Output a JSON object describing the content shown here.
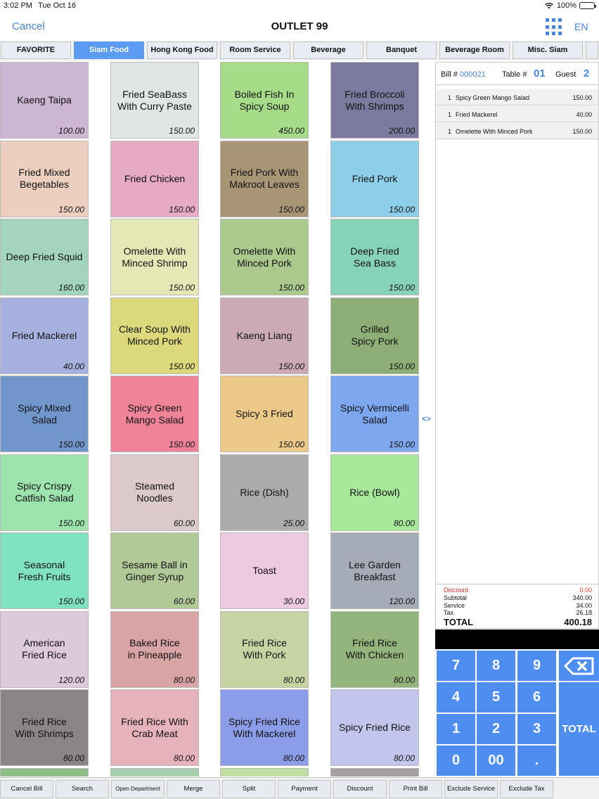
{
  "status_bar": {
    "time": "3:02 PM",
    "date": "Tue Oct 16",
    "battery": "100%"
  },
  "nav": {
    "cancel_label": "Cancel",
    "title": "OUTLET 99",
    "lang": "EN"
  },
  "tabs": [
    {
      "label": "FAVORITE"
    },
    {
      "label": "Siam Food",
      "active": true
    },
    {
      "label": "Hong Kong Food"
    },
    {
      "label": "Room Service"
    },
    {
      "label": "Beverage"
    },
    {
      "label": "Banquet"
    },
    {
      "label": "Beverage Room"
    },
    {
      "label": "Misc. Siam"
    },
    {
      "label": ""
    }
  ],
  "menu_items": [
    {
      "name": "Kaeng Taipa",
      "price": "100.00",
      "color": "#cdb5d4"
    },
    {
      "name": "Fried SeaBass\nWith Curry Paste",
      "price": "150.00",
      "color": "#e0e6e6"
    },
    {
      "name": "Boiled Fish In\nSpicy Soup",
      "price": "450.00",
      "color": "#a6dc88"
    },
    {
      "name": "Fried Broccoli\nWith Shrimps",
      "price": "200.00",
      "color": "#7d7aa0"
    },
    {
      "name": "Fried Mixed\nBegetables",
      "price": "150.00",
      "color": "#eccfbf"
    },
    {
      "name": "Fried Chicken",
      "price": "150.00",
      "color": "#e7aac4"
    },
    {
      "name": "Fried Pork With\nMakroot Leaves",
      "price": "150.00",
      "color": "#a89576"
    },
    {
      "name": "Fried Pork",
      "price": "150.00",
      "color": "#8dcfe8"
    },
    {
      "name": "Deep Fried Squid",
      "price": "160.00",
      "color": "#a3d4bf"
    },
    {
      "name": "Omelette With\nMinced Shrimp",
      "price": "150.00",
      "color": "#e3e8b4"
    },
    {
      "name": "Omelette With\nMinced Pork",
      "price": "150.00",
      "color": "#abc98d"
    },
    {
      "name": "Deep Fried\nSea Bass",
      "price": "150.00",
      "color": "#87d3b7"
    },
    {
      "name": "Fried Mackerel",
      "price": "40.00",
      "color": "#a7b1e0"
    },
    {
      "name": "Clear Soup With\nMinced Pork",
      "price": "150.00",
      "color": "#dcd97c"
    },
    {
      "name": "Kaeng Liang",
      "price": "150.00",
      "color": "#cbaab6"
    },
    {
      "name": "Grilled\nSpicy Pork",
      "price": "150.00",
      "color": "#8daf75"
    },
    {
      "name": "Spicy Mixed\nSalad",
      "price": "150.00",
      "color": "#7096cc"
    },
    {
      "name": "Spicy Green\nMango Salad",
      "price": "150.00",
      "color": "#ef8499"
    },
    {
      "name": "Spicy 3 Fried",
      "price": "150.00",
      "color": "#ecc989"
    },
    {
      "name": "Spicy Vermicelli\nSalad",
      "price": "150.00",
      "color": "#7da7ef"
    },
    {
      "name": "Spicy Crispy\nCatfish Salad",
      "price": "150.00",
      "color": "#9ce3ae"
    },
    {
      "name": "Steamed\nNoodles",
      "price": "60.00",
      "color": "#dcc9cc"
    },
    {
      "name": "Rice (Dish)",
      "price": "25.00",
      "color": "#ababab"
    },
    {
      "name": "Rice (Bowl)",
      "price": "80.00",
      "color": "#a7e89b"
    },
    {
      "name": "Seasonal\nFresh Fruits",
      "price": "150.00",
      "color": "#80e3c0"
    },
    {
      "name": "Sesame Ball in\nGinger Syrup",
      "price": "60.00",
      "color": "#b0c997"
    },
    {
      "name": "Toast",
      "price": "30.00",
      "color": "#eec9e2"
    },
    {
      "name": "Lee Garden\nBreakfast",
      "price": "120.00",
      "color": "#a6abb8"
    },
    {
      "name": "American\nFried Rice",
      "price": "120.00",
      "color": "#dec8dc"
    },
    {
      "name": "Baked Rice\nin Pineapple",
      "price": "80.00",
      "color": "#d9a4a6"
    },
    {
      "name": "Fried Rice\nWith Pork",
      "price": "80.00",
      "color": "#c8d3a3"
    },
    {
      "name": "Fried Rice\nWith Chicken",
      "price": "80.00",
      "color": "#93b57b"
    },
    {
      "name": "Fried Rice\nWith Shrimps",
      "price": "80.00",
      "color": "#8b8585"
    },
    {
      "name": "Fried Rice With\nCrab Meat",
      "price": "80.00",
      "color": "#e6b3bb"
    },
    {
      "name": "Spicy Fried Rice\nWith Mackerel",
      "price": "80.00",
      "color": "#8b9ce8"
    },
    {
      "name": "Spicy Fried Rice",
      "price": "80.00",
      "color": "#c3c6ec"
    }
  ],
  "peek_colors": [
    "#8fbf86",
    "#a8cfae",
    "#bfe0a2",
    "#a7a0a3"
  ],
  "toggle_label": "<>",
  "bill": {
    "bill_label": "Bill #",
    "bill_no": "000021",
    "table_label": "Table #",
    "table_no": "01",
    "guest_label": "Guest",
    "guest_count": "2",
    "lines": [
      {
        "qty": "1",
        "desc": "Spicy Green Mango Salad",
        "amount": "150.00"
      },
      {
        "qty": "1",
        "desc": "Fried Mackerel",
        "amount": "40.00"
      },
      {
        "qty": "1",
        "desc": "Omelette With Minced Pork",
        "amount": "150.00"
      }
    ],
    "totals": {
      "discount_label": "Discount",
      "discount": "0.00",
      "subtotal_label": "Subtotal",
      "subtotal": "340.00",
      "service_label": "Service",
      "service": "34.00",
      "tax_label": "Tax",
      "tax": "26.18",
      "total_label": "TOTAL",
      "total": "400.18"
    }
  },
  "keypad": {
    "k7": "7",
    "k8": "8",
    "k9": "9",
    "backspace_icon": "backspace-icon",
    "k4": "4",
    "k5": "5",
    "k6": "6",
    "k1": "1",
    "k2": "2",
    "k3": "3",
    "total": "TOTAL",
    "k0": "0",
    "k00": "00",
    "kdot": "."
  },
  "bottom_buttons": [
    "Cancel Bill",
    "Search",
    "Open Department",
    "Merge",
    "Split",
    "Payment",
    "Discount",
    "Print Bill",
    "Exclude Service",
    "Exclude Tax"
  ],
  "colors": {
    "accent": "#4a86d6",
    "key_blue": "#4f8ef1",
    "active_tab": "#5b9cf2",
    "discount_red": "#e0342b"
  }
}
